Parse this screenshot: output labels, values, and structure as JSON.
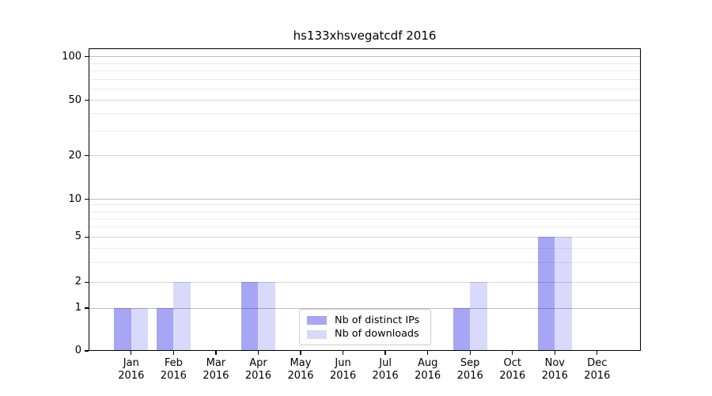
{
  "chart_data": {
    "type": "bar",
    "title": "hs133xhsvegatcdf 2016",
    "categories": [
      "Jan 2016",
      "Feb 2016",
      "Mar 2016",
      "Apr 2016",
      "May 2016",
      "Jun 2016",
      "Jul 2016",
      "Aug 2016",
      "Sep 2016",
      "Oct 2016",
      "Nov 2016",
      "Dec 2016"
    ],
    "series": [
      {
        "name": "Nb of distinct IPs",
        "values": [
          1,
          1,
          0,
          2,
          0,
          0,
          0,
          0,
          1,
          0,
          5,
          0
        ],
        "base_color": "#1414e6",
        "alpha": 0.38,
        "approx_hex": "#a6a6f7"
      },
      {
        "name": "Nb of downloads",
        "values": [
          1,
          2,
          0,
          2,
          0,
          0,
          0,
          0,
          2,
          0,
          5,
          0
        ],
        "base_color": "#1414e6",
        "alpha": 0.16,
        "approx_hex": "#dbdbfa"
      }
    ],
    "yticks": [
      0,
      1,
      2,
      5,
      10,
      20,
      50,
      100
    ],
    "ytick_labels": [
      "0",
      "1",
      "2",
      "5",
      "10",
      "20",
      "50",
      "100"
    ],
    "yscale": "log-like",
    "ylim": [
      0,
      115
    ],
    "xlabel": "",
    "ylabel": "",
    "grid": true,
    "legend": {
      "position": "lower-center",
      "entries": [
        "Nb of distinct IPs",
        "Nb of downloads"
      ]
    }
  },
  "colors": {
    "background": "#ffffff",
    "axis": "#000000",
    "text": "#000000",
    "grid_major": "#bdbdbd",
    "grid_mid": "#d6d6d6",
    "grid_minor": "#ebebeb",
    "legend_border": "#cbcbcb"
  }
}
